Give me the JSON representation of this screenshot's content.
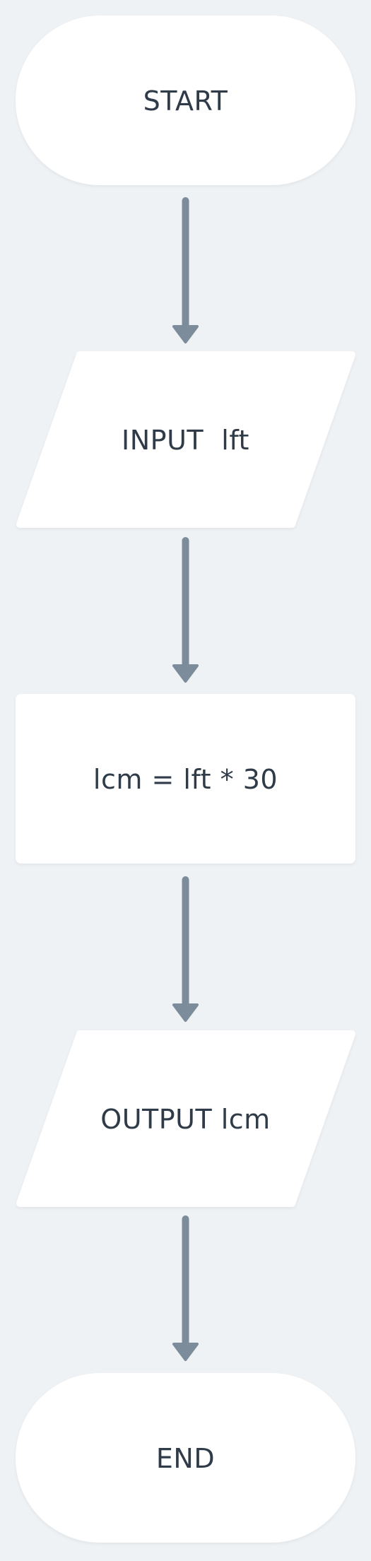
{
  "flowchart": {
    "nodes": [
      {
        "id": "start",
        "shape": "terminal",
        "label": "START"
      },
      {
        "id": "input",
        "shape": "parallelogram",
        "label": "INPUT  lft"
      },
      {
        "id": "process",
        "shape": "rectangle",
        "label": "lcm = lft * 30"
      },
      {
        "id": "output",
        "shape": "parallelogram",
        "label": "OUTPUT lcm"
      },
      {
        "id": "end",
        "shape": "terminal",
        "label": "END"
      }
    ],
    "edges": [
      {
        "from": "start",
        "to": "input"
      },
      {
        "from": "input",
        "to": "process"
      },
      {
        "from": "process",
        "to": "output"
      },
      {
        "from": "output",
        "to": "end"
      }
    ],
    "colors": {
      "background": "#eff2f5",
      "node_fill": "#ffffff",
      "arrow": "#7d8c9a",
      "text": "#2f3b48"
    }
  }
}
